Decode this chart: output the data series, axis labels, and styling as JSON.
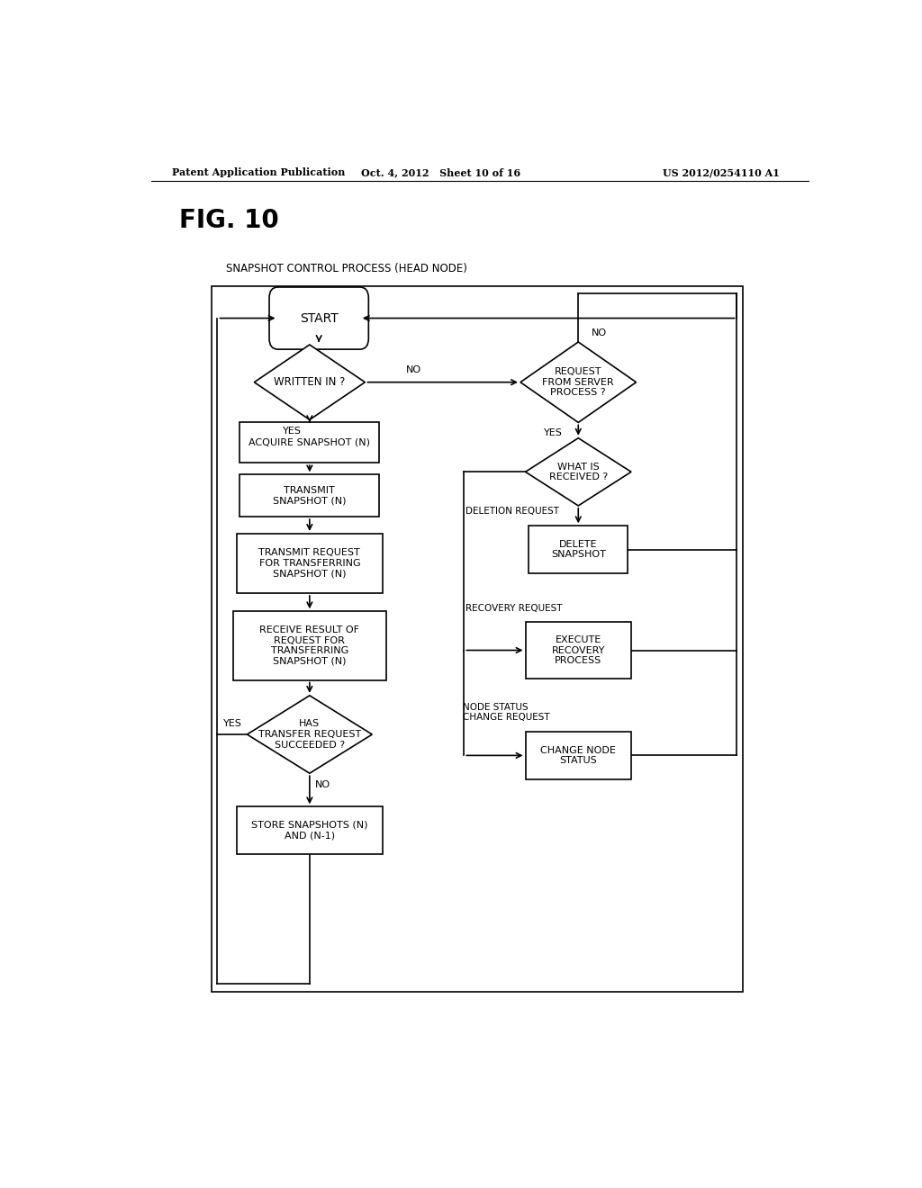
{
  "bg_color": "#ffffff",
  "header_left": "Patent Application Publication",
  "header_center": "Oct. 4, 2012   Sheet 10 of 16",
  "header_right": "US 2012/0254110 A1",
  "fig_label": "FIG. 10",
  "process_title": "SNAPSHOT CONTROL PROCESS (HEAD NODE)"
}
